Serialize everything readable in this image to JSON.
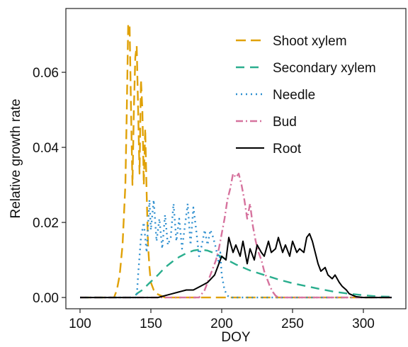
{
  "chart_data": {
    "type": "line",
    "title": "",
    "xlabel": "DOY",
    "ylabel": "Relative growth rate",
    "xlim": [
      90,
      330
    ],
    "ylim": [
      -0.003,
      0.077
    ],
    "xticks": [
      100,
      150,
      200,
      250,
      300
    ],
    "yticks": [
      0.0,
      0.02,
      0.04,
      0.06
    ],
    "ytick_labels": [
      "0.00",
      "0.02",
      "0.04",
      "0.06"
    ],
    "grid": false,
    "legend": {
      "position": "top-right"
    },
    "series": [
      {
        "name": "Shoot xylem",
        "color": "#E0A106",
        "dash": "14,7",
        "x": [
          100,
          124,
          126,
          128,
          130,
          132,
          133,
          134,
          135,
          136,
          137,
          138,
          139,
          140,
          141,
          142,
          143,
          144,
          145,
          146,
          147,
          148,
          149,
          150,
          152,
          154,
          160,
          200,
          320
        ],
        "y": [
          0,
          0,
          0.002,
          0.006,
          0.014,
          0.03,
          0.05,
          0.073,
          0.072,
          0.05,
          0.03,
          0.05,
          0.064,
          0.067,
          0.05,
          0.033,
          0.058,
          0.05,
          0.03,
          0.045,
          0.028,
          0.014,
          0.008,
          0.004,
          0.002,
          0.001,
          0,
          0,
          0
        ]
      },
      {
        "name": "Secondary xylem",
        "color": "#2AAE8E",
        "dash": "12,8",
        "x": [
          100,
          138,
          140,
          144,
          148,
          155,
          160,
          165,
          170,
          175,
          180,
          185,
          190,
          195,
          200,
          205,
          210,
          220,
          230,
          240,
          250,
          260,
          270,
          280,
          290,
          300,
          310,
          320
        ],
        "y": [
          0,
          0,
          0.001,
          0.002,
          0.0035,
          0.006,
          0.008,
          0.0095,
          0.0108,
          0.0118,
          0.0125,
          0.0128,
          0.0125,
          0.0118,
          0.0108,
          0.0098,
          0.0088,
          0.0072,
          0.006,
          0.0048,
          0.0038,
          0.003,
          0.0022,
          0.0015,
          0.001,
          0.0006,
          0.0003,
          0.0002
        ]
      },
      {
        "name": "Needle",
        "color": "#2E8FCF",
        "dash": "2,5",
        "x": [
          100,
          140,
          141,
          143,
          145,
          147,
          149,
          150,
          152,
          154,
          156,
          158,
          160,
          162,
          164,
          166,
          168,
          170,
          172,
          174,
          176,
          178,
          180,
          182,
          184,
          186,
          188,
          190,
          192,
          194,
          196,
          198,
          199,
          200,
          202,
          204,
          206,
          320
        ],
        "y": [
          0,
          0,
          0.006,
          0.016,
          0.02,
          0.012,
          0.026,
          0.018,
          0.026,
          0.015,
          0.021,
          0.013,
          0.022,
          0.014,
          0.016,
          0.025,
          0.015,
          0.021,
          0.013,
          0.019,
          0.025,
          0.014,
          0.024,
          0.018,
          0.011,
          0.014,
          0.018,
          0.014,
          0.018,
          0.016,
          0.013,
          0.009,
          0.012,
          0.006,
          0.002,
          0.0005,
          0,
          0
        ]
      },
      {
        "name": "Bud",
        "color": "#D6739E",
        "dash": "10,4,2,4",
        "x": [
          100,
          184,
          186,
          188,
          190,
          192,
          194,
          196,
          198,
          200,
          202,
          204,
          206,
          208,
          210,
          212,
          214,
          216,
          218,
          220,
          222,
          224,
          226,
          228,
          230,
          232,
          234,
          236,
          238,
          240,
          320
        ],
        "y": [
          0,
          0,
          0.001,
          0.002,
          0.004,
          0.006,
          0.008,
          0.01,
          0.013,
          0.017,
          0.021,
          0.026,
          0.029,
          0.033,
          0.032,
          0.033,
          0.03,
          0.026,
          0.021,
          0.025,
          0.019,
          0.015,
          0.012,
          0.01,
          0.007,
          0.005,
          0.003,
          0.0015,
          0.0005,
          0,
          0
        ]
      },
      {
        "name": "Root",
        "color": "#000000",
        "dash": "",
        "x": [
          100,
          155,
          160,
          165,
          170,
          175,
          180,
          185,
          190,
          195,
          198,
          200,
          203,
          205,
          208,
          210,
          213,
          215,
          218,
          220,
          223,
          225,
          228,
          230,
          233,
          235,
          238,
          240,
          243,
          245,
          248,
          250,
          253,
          255,
          258,
          260,
          262,
          264,
          266,
          268,
          270,
          273,
          275,
          278,
          280,
          283,
          285,
          288,
          290,
          293,
          295,
          300,
          320
        ],
        "y": [
          0,
          0,
          0.0005,
          0.001,
          0.0015,
          0.002,
          0.002,
          0.003,
          0.004,
          0.006,
          0.009,
          0.011,
          0.01,
          0.016,
          0.012,
          0.014,
          0.011,
          0.015,
          0.009,
          0.013,
          0.01,
          0.014,
          0.012,
          0.011,
          0.015,
          0.012,
          0.013,
          0.016,
          0.012,
          0.014,
          0.011,
          0.015,
          0.012,
          0.013,
          0.012,
          0.016,
          0.017,
          0.015,
          0.012,
          0.009,
          0.007,
          0.008,
          0.006,
          0.005,
          0.006,
          0.004,
          0.003,
          0.002,
          0.001,
          0.0005,
          0.0002,
          0,
          0
        ]
      }
    ]
  }
}
